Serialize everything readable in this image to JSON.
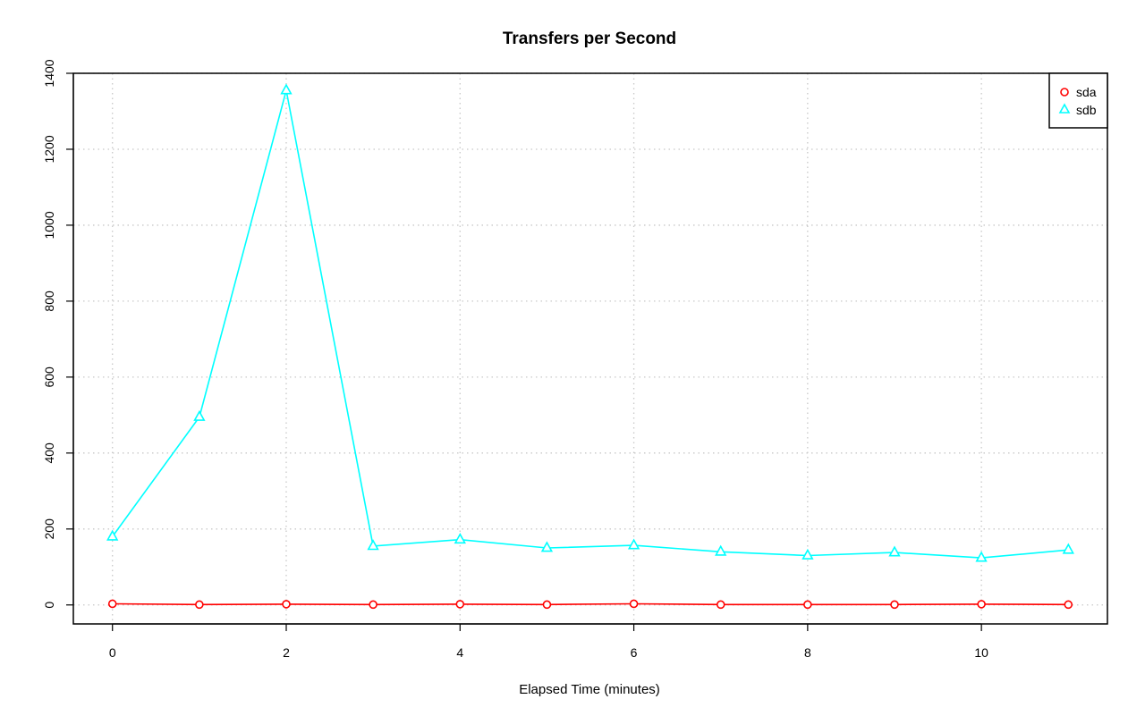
{
  "chart_data": {
    "type": "line",
    "title": "Transfers per Second",
    "xlabel": "Elapsed Time (minutes)",
    "ylabel": "",
    "xlim": [
      -0.45,
      11.45
    ],
    "ylim": [
      -50,
      1400
    ],
    "x_ticks": [
      0,
      2,
      4,
      6,
      8,
      10
    ],
    "y_ticks": [
      0,
      200,
      400,
      600,
      800,
      1000,
      1200,
      1400
    ],
    "grid": true,
    "legend_position": "top-right",
    "x": [
      0,
      1,
      2,
      3,
      4,
      5,
      6,
      7,
      8,
      9,
      10,
      11
    ],
    "series": [
      {
        "name": "sda",
        "color": "#ff0000",
        "marker": "circle",
        "values": [
          3,
          1,
          2,
          1,
          2,
          1,
          3,
          1,
          1,
          1,
          2,
          1
        ]
      },
      {
        "name": "sdb",
        "color": "#00ffff",
        "marker": "triangle",
        "values": [
          180,
          495,
          1355,
          155,
          172,
          150,
          157,
          140,
          130,
          138,
          124,
          145
        ]
      }
    ]
  }
}
